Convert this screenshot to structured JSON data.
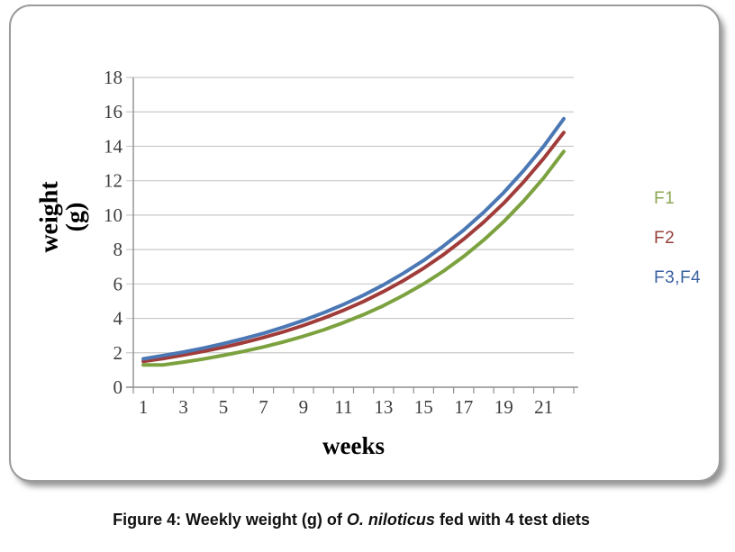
{
  "chart_data": {
    "type": "line",
    "title": "",
    "xlabel": "weeks",
    "ylabel_line1": "weight",
    "ylabel_line2": "(g)",
    "x": [
      1,
      2,
      3,
      4,
      5,
      6,
      7,
      8,
      9,
      10,
      11,
      12,
      13,
      14,
      15,
      16,
      17,
      18,
      19,
      20,
      21,
      22
    ],
    "x_tick_labels": [
      1,
      3,
      5,
      7,
      9,
      11,
      13,
      15,
      17,
      19,
      21
    ],
    "y_ticks": [
      0,
      2,
      4,
      6,
      8,
      10,
      12,
      14,
      16,
      18
    ],
    "ylim": [
      0,
      18
    ],
    "grid": true,
    "legend_position": "right",
    "series": [
      {
        "name": "F1",
        "color": "#7ca23f",
        "legend_color": "#8ba652",
        "values": [
          1.3,
          1.3,
          1.46,
          1.64,
          1.85,
          2.08,
          2.34,
          2.63,
          2.96,
          3.33,
          3.75,
          4.22,
          4.74,
          5.34,
          6.0,
          6.75,
          7.6,
          8.55,
          9.62,
          10.82,
          12.17,
          13.7
        ]
      },
      {
        "name": "F2",
        "color": "#a03c3a",
        "legend_color": "#95403c",
        "values": [
          1.5,
          1.67,
          1.87,
          2.08,
          2.32,
          2.59,
          2.89,
          3.22,
          3.59,
          4.01,
          4.47,
          4.98,
          5.56,
          6.2,
          6.91,
          7.71,
          8.6,
          9.59,
          10.69,
          11.93,
          13.3,
          14.8
        ]
      },
      {
        "name": "F3,F4",
        "color": "#4b78b4",
        "legend_color": "#3a62a0",
        "values": [
          1.65,
          1.84,
          2.04,
          2.27,
          2.53,
          2.82,
          3.13,
          3.49,
          3.88,
          4.32,
          4.81,
          5.35,
          5.95,
          6.63,
          7.37,
          8.21,
          9.13,
          10.16,
          11.31,
          12.59,
          14.01,
          15.6
        ]
      }
    ],
    "axis_color": "#8e8e8e",
    "grid_color": "#c9c9c9",
    "tick_label_color": "#3d3d3d"
  },
  "caption": {
    "prefix": "Figure 4: Weekly weight (g) of ",
    "italic": "O. niloticus",
    "suffix": " fed with 4 test diets"
  }
}
